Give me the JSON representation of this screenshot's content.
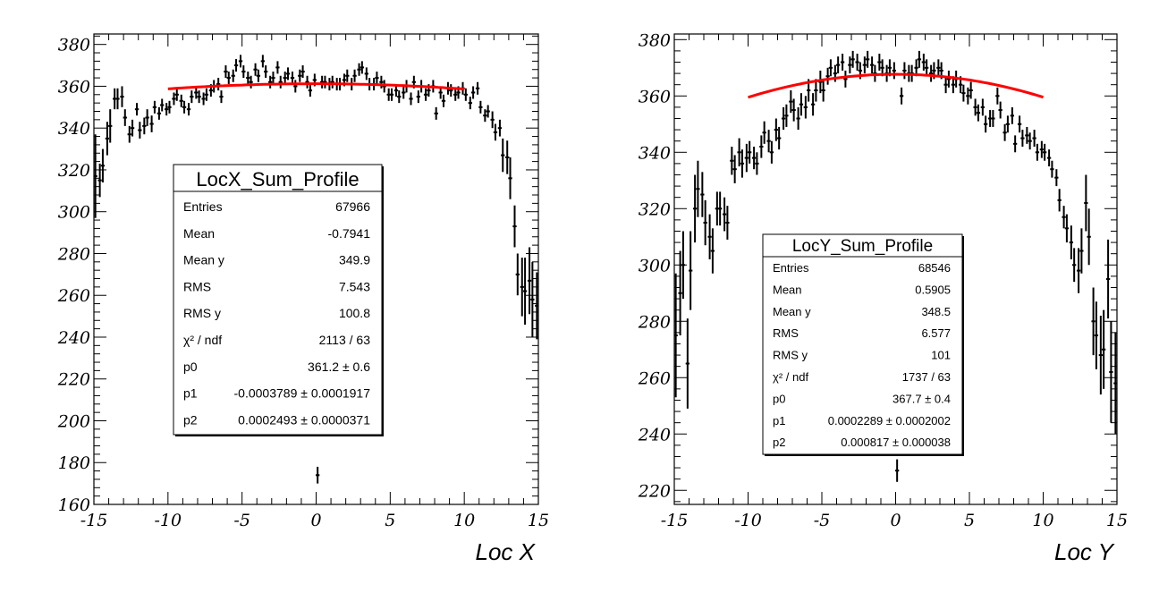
{
  "chart_data": [
    {
      "type": "scatter",
      "style": "profile-with-errorbars",
      "xlabel": "Loc X",
      "ylabel": "",
      "xlim": [
        -15,
        15
      ],
      "ylim": [
        160,
        385
      ],
      "x_ticks": [
        "-15",
        "-10",
        "-5",
        "0",
        "5",
        "10",
        "15"
      ],
      "y_ticks": [
        "160",
        "180",
        "200",
        "220",
        "240",
        "260",
        "280",
        "300",
        "320",
        "340",
        "360",
        "380"
      ],
      "fit_line_color": "#ff0000",
      "fit": {
        "p0": 361.2,
        "p1": -0.0003789,
        "p2": 0.0002493,
        "x_range": [
          -10,
          10
        ]
      },
      "stats_box": {
        "title": "LocX_Sum_Profile",
        "rows": [
          {
            "label": "Entries",
            "value": "67966"
          },
          {
            "label": "Mean",
            "value": "-0.7941"
          },
          {
            "label": "Mean y",
            "value": "349.9"
          },
          {
            "label": "RMS",
            "value": "7.543"
          },
          {
            "label": "RMS y",
            "value": "100.8"
          },
          {
            "label": "χ² / ndf",
            "value": "2113 / 63"
          },
          {
            "label": "p0",
            "value": "361.2 ± 0.6"
          },
          {
            "label": "p1",
            "value": "-0.0003789 ± 0.0001917"
          },
          {
            "label": "p2",
            "value": "0.0002493 ± 0.0000371"
          }
        ]
      },
      "points": [
        [
          -14.9,
          317,
          20
        ],
        [
          -14.6,
          315,
          8
        ],
        [
          -14.4,
          322,
          8
        ],
        [
          -14.1,
          335,
          8
        ],
        [
          -13.9,
          341,
          8
        ],
        [
          -13.6,
          354,
          5
        ],
        [
          -13.4,
          354,
          5
        ],
        [
          -13.1,
          355,
          5
        ],
        [
          -12.9,
          345,
          4
        ],
        [
          -12.6,
          337,
          4
        ],
        [
          -12.4,
          340,
          4
        ],
        [
          -12.1,
          349,
          3
        ],
        [
          -11.9,
          339,
          4
        ],
        [
          -11.6,
          341,
          4
        ],
        [
          -11.4,
          345,
          4
        ],
        [
          -11.1,
          342,
          4
        ],
        [
          -10.9,
          350,
          3
        ],
        [
          -10.6,
          347,
          3
        ],
        [
          -10.4,
          351,
          3
        ],
        [
          -10.1,
          349,
          3
        ],
        [
          -9.9,
          350,
          3
        ],
        [
          -9.6,
          354,
          3
        ],
        [
          -9.4,
          356,
          3
        ],
        [
          -9.1,
          353,
          3
        ],
        [
          -8.9,
          350,
          3
        ],
        [
          -8.6,
          349,
          3
        ],
        [
          -8.4,
          355,
          3
        ],
        [
          -8.1,
          357,
          3
        ],
        [
          -7.9,
          355,
          3
        ],
        [
          -7.6,
          354,
          3
        ],
        [
          -7.4,
          356,
          3
        ],
        [
          -7.1,
          358,
          3
        ],
        [
          -6.9,
          360,
          3
        ],
        [
          -6.6,
          361,
          3
        ],
        [
          -6.4,
          355,
          3
        ],
        [
          -6.1,
          367,
          3
        ],
        [
          -5.9,
          364,
          3
        ],
        [
          -5.6,
          365,
          3
        ],
        [
          -5.4,
          370,
          3
        ],
        [
          -5.1,
          372,
          3
        ],
        [
          -4.9,
          367,
          3
        ],
        [
          -4.6,
          364,
          3
        ],
        [
          -4.4,
          362,
          3
        ],
        [
          -4.1,
          368,
          3
        ],
        [
          -3.9,
          365,
          3
        ],
        [
          -3.6,
          372,
          3
        ],
        [
          -3.4,
          367,
          3
        ],
        [
          -3.1,
          362,
          3
        ],
        [
          -2.9,
          364,
          3
        ],
        [
          -2.6,
          369,
          3
        ],
        [
          -2.4,
          362,
          3
        ],
        [
          -2.1,
          364,
          3
        ],
        [
          -1.9,
          366,
          3
        ],
        [
          -1.6,
          364,
          3
        ],
        [
          -1.4,
          360,
          3
        ],
        [
          -1.1,
          365,
          3
        ],
        [
          -0.9,
          367,
          3
        ],
        [
          -0.6,
          362,
          3
        ],
        [
          -0.4,
          358,
          3
        ],
        [
          -0.1,
          363,
          3
        ],
        [
          0.1,
          174,
          4
        ],
        [
          0.4,
          362,
          3
        ],
        [
          0.6,
          362,
          3
        ],
        [
          0.9,
          361,
          3
        ],
        [
          1.1,
          362,
          3
        ],
        [
          1.4,
          361,
          3
        ],
        [
          1.6,
          361,
          3
        ],
        [
          1.9,
          363,
          3
        ],
        [
          2.1,
          365,
          3
        ],
        [
          2.4,
          361,
          3
        ],
        [
          2.6,
          365,
          3
        ],
        [
          2.9,
          368,
          3
        ],
        [
          3.1,
          369,
          3
        ],
        [
          3.4,
          366,
          3
        ],
        [
          3.6,
          361,
          3
        ],
        [
          3.9,
          361,
          3
        ],
        [
          4.1,
          364,
          3
        ],
        [
          4.4,
          362,
          3
        ],
        [
          4.6,
          360,
          3
        ],
        [
          4.9,
          356,
          3
        ],
        [
          5.1,
          356,
          3
        ],
        [
          5.4,
          358,
          3
        ],
        [
          5.6,
          355,
          3
        ],
        [
          5.9,
          357,
          3
        ],
        [
          6.1,
          360,
          3
        ],
        [
          6.4,
          354,
          3
        ],
        [
          6.6,
          362,
          3
        ],
        [
          6.9,
          355,
          3
        ],
        [
          7.1,
          360,
          3
        ],
        [
          7.4,
          356,
          3
        ],
        [
          7.6,
          358,
          3
        ],
        [
          7.9,
          360,
          3
        ],
        [
          8.1,
          347,
          3
        ],
        [
          8.4,
          357,
          3
        ],
        [
          8.6,
          353,
          3
        ],
        [
          8.9,
          359,
          3
        ],
        [
          9.1,
          358,
          3
        ],
        [
          9.4,
          356,
          3
        ],
        [
          9.6,
          357,
          3
        ],
        [
          9.9,
          359,
          3
        ],
        [
          10.1,
          356,
          3
        ],
        [
          10.4,
          352,
          3
        ],
        [
          10.6,
          357,
          3
        ],
        [
          10.9,
          359,
          3
        ],
        [
          11.1,
          350,
          3
        ],
        [
          11.4,
          346,
          3
        ],
        [
          11.6,
          348,
          3
        ],
        [
          11.9,
          344,
          4
        ],
        [
          12.1,
          338,
          4
        ],
        [
          12.4,
          340,
          4
        ],
        [
          12.6,
          327,
          8
        ],
        [
          12.9,
          326,
          8
        ],
        [
          13.1,
          316,
          10
        ],
        [
          13.4,
          293,
          10
        ],
        [
          13.6,
          270,
          10
        ],
        [
          13.9,
          264,
          14
        ],
        [
          14.1,
          262,
          16
        ],
        [
          14.4,
          267,
          16
        ],
        [
          14.6,
          258,
          18
        ],
        [
          14.9,
          255,
          16
        ]
      ]
    },
    {
      "type": "scatter",
      "style": "profile-with-errorbars",
      "xlabel": "Loc Y",
      "ylabel": "",
      "xlim": [
        -15,
        15
      ],
      "ylim": [
        215,
        382
      ],
      "x_ticks": [
        "-15",
        "-10",
        "-5",
        "0",
        "5",
        "10",
        "15"
      ],
      "y_ticks": [
        "220",
        "240",
        "260",
        "280",
        "300",
        "320",
        "340",
        "360",
        "380"
      ],
      "fit_line_color": "#ff0000",
      "fit": {
        "p0": 367.7,
        "p1": 0.0002289,
        "p2": 0.000817,
        "x_range": [
          -10,
          10
        ]
      },
      "stats_box": {
        "title": "LocY_Sum_Profile",
        "rows": [
          {
            "label": "Entries",
            "value": "68546"
          },
          {
            "label": "Mean",
            "value": "0.5905"
          },
          {
            "label": "Mean y",
            "value": "348.5"
          },
          {
            "label": "RMS",
            "value": "6.577"
          },
          {
            "label": "RMS y",
            "value": "101"
          },
          {
            "label": "χ² / ndf",
            "value": "1737 / 63"
          },
          {
            "label": "p0",
            "value": "367.7 ± 0.4"
          },
          {
            "label": "p1",
            "value": "0.0002289 ± 0.0002002"
          },
          {
            "label": "p2",
            "value": "0.000817 ± 0.000038"
          }
        ]
      },
      "points": [
        [
          -14.9,
          275,
          22
        ],
        [
          -14.6,
          290,
          15
        ],
        [
          -14.4,
          300,
          12
        ],
        [
          -14.1,
          265,
          16
        ],
        [
          -13.9,
          298,
          14
        ],
        [
          -13.6,
          320,
          12
        ],
        [
          -13.4,
          327,
          10
        ],
        [
          -13.1,
          325,
          8
        ],
        [
          -12.9,
          315,
          8
        ],
        [
          -12.6,
          310,
          8
        ],
        [
          -12.4,
          305,
          8
        ],
        [
          -12.1,
          320,
          6
        ],
        [
          -11.9,
          320,
          6
        ],
        [
          -11.6,
          318,
          6
        ],
        [
          -11.4,
          315,
          6
        ],
        [
          -11.1,
          337,
          5
        ],
        [
          -10.9,
          334,
          5
        ],
        [
          -10.6,
          340,
          5
        ],
        [
          -10.4,
          336,
          5
        ],
        [
          -10.1,
          338,
          5
        ],
        [
          -9.9,
          340,
          4
        ],
        [
          -9.6,
          338,
          4
        ],
        [
          -9.4,
          336,
          4
        ],
        [
          -9.1,
          342,
          4
        ],
        [
          -8.9,
          347,
          4
        ],
        [
          -8.6,
          344,
          4
        ],
        [
          -8.4,
          340,
          4
        ],
        [
          -8.1,
          348,
          4
        ],
        [
          -7.9,
          345,
          4
        ],
        [
          -7.6,
          352,
          4
        ],
        [
          -7.4,
          353,
          4
        ],
        [
          -7.1,
          358,
          4
        ],
        [
          -6.9,
          355,
          4
        ],
        [
          -6.6,
          352,
          4
        ],
        [
          -6.4,
          357,
          4
        ],
        [
          -6.1,
          356,
          4
        ],
        [
          -5.9,
          362,
          4
        ],
        [
          -5.6,
          357,
          4
        ],
        [
          -5.4,
          362,
          4
        ],
        [
          -5.1,
          365,
          4
        ],
        [
          -4.9,
          362,
          4
        ],
        [
          -4.6,
          367,
          3
        ],
        [
          -4.4,
          370,
          3
        ],
        [
          -4.1,
          368,
          3
        ],
        [
          -3.9,
          371,
          3
        ],
        [
          -3.6,
          372,
          3
        ],
        [
          -3.4,
          366,
          3
        ],
        [
          -3.1,
          371,
          3
        ],
        [
          -2.9,
          373,
          3
        ],
        [
          -2.6,
          372,
          3
        ],
        [
          -2.4,
          369,
          3
        ],
        [
          -2.1,
          371,
          3
        ],
        [
          -1.9,
          373,
          3
        ],
        [
          -1.6,
          371,
          3
        ],
        [
          -1.4,
          368,
          3
        ],
        [
          -1.1,
          372,
          3
        ],
        [
          -0.9,
          370,
          3
        ],
        [
          -0.6,
          368,
          3
        ],
        [
          -0.4,
          370,
          3
        ],
        [
          -0.1,
          369,
          3
        ],
        [
          0.1,
          227,
          4
        ],
        [
          0.4,
          360,
          3
        ],
        [
          0.6,
          369,
          3
        ],
        [
          0.9,
          368,
          3
        ],
        [
          1.1,
          368,
          3
        ],
        [
          1.4,
          370,
          3
        ],
        [
          1.6,
          373,
          3
        ],
        [
          1.9,
          372,
          3
        ],
        [
          2.1,
          370,
          3
        ],
        [
          2.4,
          368,
          3
        ],
        [
          2.6,
          369,
          3
        ],
        [
          2.9,
          370,
          3
        ],
        [
          3.1,
          369,
          3
        ],
        [
          3.4,
          364,
          3
        ],
        [
          3.6,
          366,
          3
        ],
        [
          3.9,
          364,
          3
        ],
        [
          4.1,
          366,
          3
        ],
        [
          4.4,
          364,
          3
        ],
        [
          4.6,
          361,
          3
        ],
        [
          4.9,
          360,
          3
        ],
        [
          5.1,
          362,
          3
        ],
        [
          5.4,
          356,
          3
        ],
        [
          5.6,
          354,
          3
        ],
        [
          5.9,
          356,
          3
        ],
        [
          6.1,
          350,
          3
        ],
        [
          6.4,
          352,
          3
        ],
        [
          6.6,
          352,
          3
        ],
        [
          6.9,
          360,
          3
        ],
        [
          7.1,
          355,
          3
        ],
        [
          7.4,
          347,
          3
        ],
        [
          7.6,
          350,
          3
        ],
        [
          7.9,
          353,
          3
        ],
        [
          8.1,
          343,
          3
        ],
        [
          8.4,
          350,
          3
        ],
        [
          8.6,
          345,
          3
        ],
        [
          8.9,
          346,
          3
        ],
        [
          9.1,
          344,
          3
        ],
        [
          9.4,
          345,
          3
        ],
        [
          9.6,
          340,
          3
        ],
        [
          9.9,
          341,
          3
        ],
        [
          10.1,
          340,
          3
        ],
        [
          10.4,
          338,
          3
        ],
        [
          10.6,
          334,
          3
        ],
        [
          10.9,
          331,
          3
        ],
        [
          11.1,
          323,
          4
        ],
        [
          11.4,
          317,
          4
        ],
        [
          11.6,
          313,
          5
        ],
        [
          11.9,
          308,
          6
        ],
        [
          12.1,
          300,
          6
        ],
        [
          12.4,
          298,
          8
        ],
        [
          12.6,
          305,
          8
        ],
        [
          12.9,
          322,
          10
        ],
        [
          13.1,
          310,
          10
        ],
        [
          13.4,
          280,
          12
        ],
        [
          13.6,
          275,
          12
        ],
        [
          13.9,
          268,
          14
        ],
        [
          14.1,
          270,
          14
        ],
        [
          14.4,
          295,
          14
        ],
        [
          14.6,
          262,
          18
        ],
        [
          14.9,
          258,
          18
        ]
      ]
    }
  ]
}
